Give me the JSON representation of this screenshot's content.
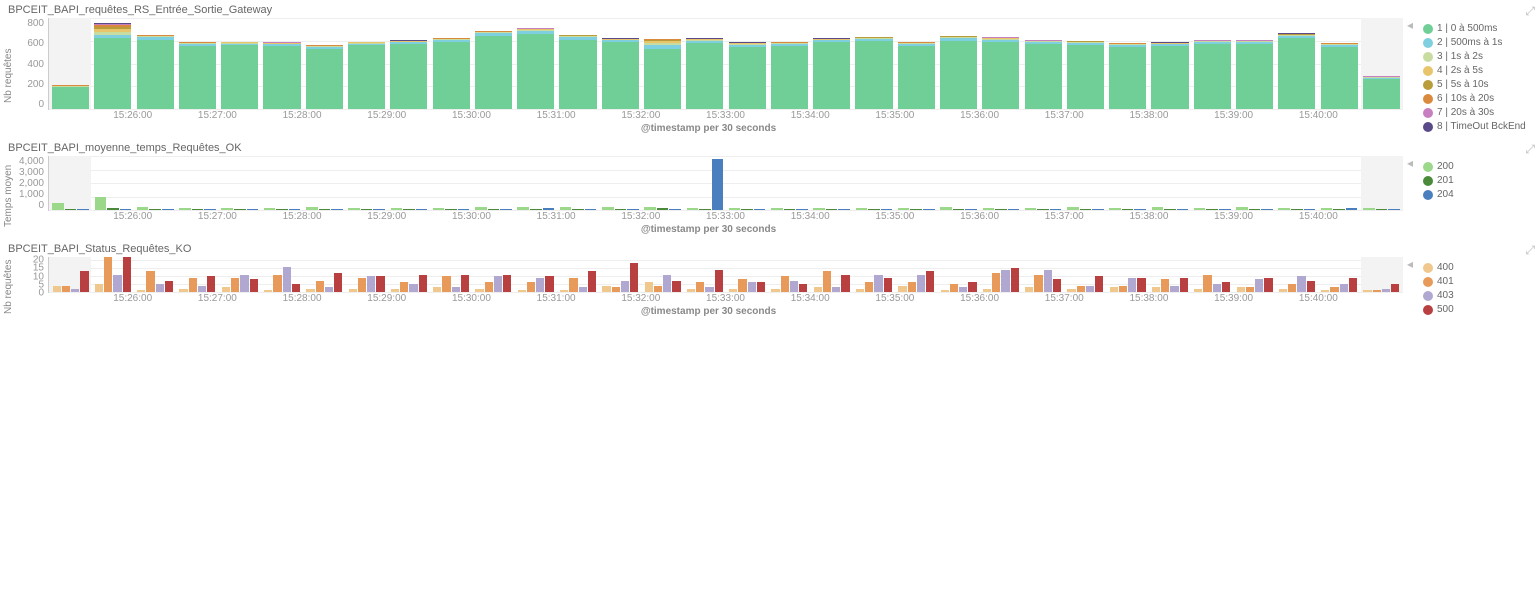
{
  "global": {
    "xaxis_label": "@timestamp per 30 seconds",
    "background_color": "#ffffff",
    "grid_color": "#eeeeee",
    "axis_color": "#cccccc",
    "text_color": "#888888",
    "grey_band_color": "#f3f3f3"
  },
  "time_labels": [
    "15:26:00",
    "15:27:00",
    "15:28:00",
    "15:29:00",
    "15:30:00",
    "15:31:00",
    "15:32:00",
    "15:33:00",
    "15:34:00",
    "15:35:00",
    "15:36:00",
    "15:37:00",
    "15:38:00",
    "15:39:00",
    "15:40:00"
  ],
  "chart1": {
    "title": "BPCEIT_BAPI_requêtes_RS_Entrée_Sortie_Gateway",
    "type": "stacked-bar",
    "yaxis_label": "Nb requêtes",
    "ymax": 800,
    "yticks": [
      "800",
      "600",
      "400",
      "200",
      "0"
    ],
    "legend": [
      {
        "label": "1 | 0 à 500ms",
        "color": "#6fcf97"
      },
      {
        "label": "2 | 500ms à 1s",
        "color": "#7ed0e0"
      },
      {
        "label": "3 | 1s à 2s",
        "color": "#c9dca0"
      },
      {
        "label": "4 | 2s à 5s",
        "color": "#e8c56a"
      },
      {
        "label": "5 | 5s à 10s",
        "color": "#b89d3a"
      },
      {
        "label": "6 | 10s à 20s",
        "color": "#d98a3d"
      },
      {
        "label": "7 | 20s à 30s",
        "color": "#c87fc0"
      },
      {
        "label": "8 | TimeOut BckEnd",
        "color": "#5b4a8a"
      }
    ],
    "stacks": [
      [
        190,
        8,
        4,
        2,
        2,
        2,
        2,
        2
      ],
      [
        620,
        30,
        25,
        25,
        20,
        15,
        10,
        10
      ],
      [
        610,
        20,
        8,
        5,
        3,
        2,
        2,
        3
      ],
      [
        555,
        15,
        8,
        4,
        2,
        2,
        2,
        3
      ],
      [
        560,
        15,
        6,
        4,
        2,
        2,
        2,
        2
      ],
      [
        555,
        15,
        6,
        4,
        2,
        2,
        2,
        2
      ],
      [
        530,
        15,
        6,
        4,
        2,
        2,
        2,
        2
      ],
      [
        560,
        15,
        6,
        4,
        2,
        2,
        2,
        2
      ],
      [
        570,
        15,
        6,
        4,
        2,
        2,
        2,
        2
      ],
      [
        590,
        18,
        6,
        4,
        2,
        2,
        2,
        3
      ],
      [
        640,
        25,
        8,
        5,
        3,
        2,
        2,
        3
      ],
      [
        660,
        25,
        10,
        6,
        4,
        3,
        2,
        3
      ],
      [
        610,
        22,
        8,
        5,
        3,
        2,
        2,
        3
      ],
      [
        585,
        18,
        6,
        4,
        2,
        2,
        2,
        3
      ],
      [
        525,
        35,
        25,
        15,
        8,
        4,
        2,
        3
      ],
      [
        580,
        20,
        8,
        5,
        3,
        2,
        2,
        3
      ],
      [
        545,
        20,
        8,
        5,
        3,
        2,
        2,
        3
      ],
      [
        555,
        18,
        6,
        4,
        2,
        2,
        2,
        3
      ],
      [
        585,
        18,
        6,
        4,
        2,
        2,
        2,
        3
      ],
      [
        595,
        20,
        8,
        5,
        3,
        2,
        2,
        3
      ],
      [
        555,
        18,
        6,
        4,
        2,
        2,
        2,
        3
      ],
      [
        600,
        22,
        8,
        5,
        3,
        2,
        2,
        3
      ],
      [
        590,
        20,
        8,
        5,
        3,
        2,
        2,
        3
      ],
      [
        570,
        18,
        6,
        4,
        2,
        2,
        2,
        3
      ],
      [
        565,
        18,
        6,
        4,
        2,
        2,
        2,
        3
      ],
      [
        545,
        18,
        6,
        4,
        2,
        2,
        2,
        3
      ],
      [
        550,
        18,
        6,
        4,
        2,
        2,
        2,
        3
      ],
      [
        570,
        18,
        6,
        4,
        2,
        2,
        2,
        3
      ],
      [
        570,
        18,
        6,
        4,
        2,
        2,
        2,
        3
      ],
      [
        620,
        22,
        8,
        5,
        3,
        2,
        2,
        3
      ],
      [
        545,
        18,
        6,
        4,
        2,
        2,
        2,
        3
      ],
      [
        260,
        12,
        6,
        4,
        2,
        2,
        2,
        2
      ]
    ]
  },
  "chart2": {
    "title": "BPCEIT_BAPI_moyenne_temps_Requêtes_OK",
    "type": "grouped-bar",
    "yaxis_label": "Temps moyen",
    "ymax": 4000,
    "yticks": [
      "4,000",
      "3,000",
      "2,000",
      "1,000",
      "0"
    ],
    "legend": [
      {
        "label": "200",
        "color": "#9bd88a"
      },
      {
        "label": "201",
        "color": "#4a8a3a"
      },
      {
        "label": "204",
        "color": "#4a7fbf"
      }
    ],
    "groups": [
      [
        520,
        100,
        80
      ],
      [
        1000,
        120,
        60
      ],
      [
        190,
        90,
        70
      ],
      [
        170,
        80,
        100
      ],
      [
        180,
        90,
        60
      ],
      [
        170,
        80,
        70
      ],
      [
        200,
        100,
        60
      ],
      [
        160,
        80,
        60
      ],
      [
        180,
        90,
        70
      ],
      [
        170,
        80,
        60
      ],
      [
        210,
        100,
        60
      ],
      [
        200,
        90,
        130
      ],
      [
        220,
        100,
        80
      ],
      [
        190,
        90,
        70
      ],
      [
        260,
        120,
        70
      ],
      [
        180,
        90,
        3800
      ],
      [
        170,
        80,
        60
      ],
      [
        160,
        80,
        60
      ],
      [
        180,
        90,
        100
      ],
      [
        170,
        80,
        60
      ],
      [
        180,
        90,
        60
      ],
      [
        190,
        90,
        70
      ],
      [
        180,
        80,
        60
      ],
      [
        170,
        80,
        60
      ],
      [
        200,
        100,
        60
      ],
      [
        180,
        90,
        60
      ],
      [
        190,
        90,
        70
      ],
      [
        170,
        80,
        60
      ],
      [
        220,
        100,
        60
      ],
      [
        180,
        90,
        60
      ],
      [
        170,
        80,
        130
      ],
      [
        150,
        80,
        60
      ]
    ]
  },
  "chart3": {
    "title": "BPCEIT_BAPI_Status_Requêtes_KO",
    "type": "grouped-bar",
    "yaxis_label": "Nb requêtes",
    "ymax": 22,
    "yticks": [
      "20",
      "15",
      "10",
      "5",
      "0"
    ],
    "ytick_positions_pct": [
      9.1,
      31.8,
      54.5,
      77.3,
      100
    ],
    "legend": [
      {
        "label": "400",
        "color": "#f0c78c"
      },
      {
        "label": "401",
        "color": "#e89a5a"
      },
      {
        "label": "403",
        "color": "#b0a8d0"
      },
      {
        "label": "500",
        "color": "#b84040"
      }
    ],
    "groups": [
      [
        4,
        4,
        2,
        13
      ],
      [
        5,
        23,
        11,
        22
      ],
      [
        1,
        13,
        5,
        7
      ],
      [
        2,
        9,
        4,
        10
      ],
      [
        3,
        9,
        11,
        8
      ],
      [
        1,
        11,
        16,
        5
      ],
      [
        2,
        7,
        3,
        12
      ],
      [
        2,
        9,
        10,
        10
      ],
      [
        2,
        6,
        5,
        11
      ],
      [
        3,
        10,
        3,
        11
      ],
      [
        2,
        6,
        10,
        11
      ],
      [
        1,
        6,
        9,
        10
      ],
      [
        1,
        9,
        3,
        13
      ],
      [
        4,
        3,
        7,
        18
      ],
      [
        6,
        4,
        11,
        7
      ],
      [
        2,
        6,
        3,
        14
      ],
      [
        2,
        8,
        6,
        6
      ],
      [
        2,
        10,
        7,
        5
      ],
      [
        3,
        13,
        3,
        11
      ],
      [
        2,
        6,
        11,
        9
      ],
      [
        4,
        6,
        11,
        13
      ],
      [
        1,
        5,
        3,
        6
      ],
      [
        2,
        12,
        14,
        15
      ],
      [
        3,
        11,
        14,
        8
      ],
      [
        2,
        4,
        4,
        10
      ],
      [
        3,
        4,
        9,
        9
      ],
      [
        3,
        8,
        4,
        9
      ],
      [
        2,
        11,
        5,
        6
      ],
      [
        3,
        3,
        8,
        9
      ],
      [
        2,
        5,
        10,
        7
      ],
      [
        1,
        3,
        5,
        9
      ],
      [
        1,
        1,
        2,
        5
      ]
    ]
  }
}
